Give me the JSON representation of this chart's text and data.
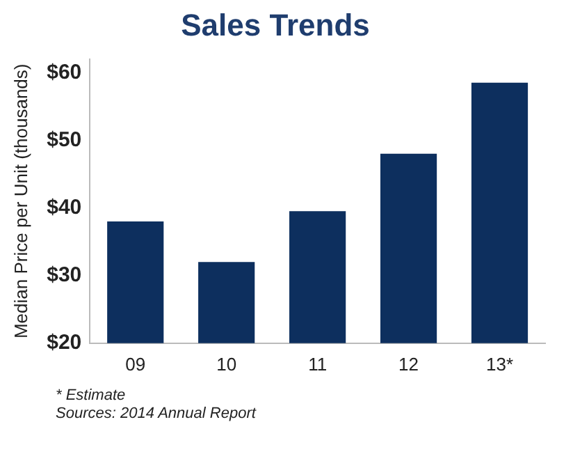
{
  "chart_data": {
    "type": "bar",
    "title": "Sales Trends",
    "ylabel": "Median Price per Unit (thousands)",
    "categories": [
      "09",
      "10",
      "11",
      "12",
      "13*"
    ],
    "values": [
      38,
      32,
      39.5,
      48,
      58.5
    ],
    "color": "#0d2f5e",
    "ylim": [
      20,
      62
    ],
    "yticks": [
      {
        "value": 20,
        "label": "$20"
      },
      {
        "value": 30,
        "label": "$30"
      },
      {
        "value": 40,
        "label": "$40"
      },
      {
        "value": 50,
        "label": "$50"
      },
      {
        "value": 60,
        "label": "$60"
      }
    ],
    "annotations": [
      "* Estimate",
      "Sources: 2014 Annual Report"
    ]
  }
}
